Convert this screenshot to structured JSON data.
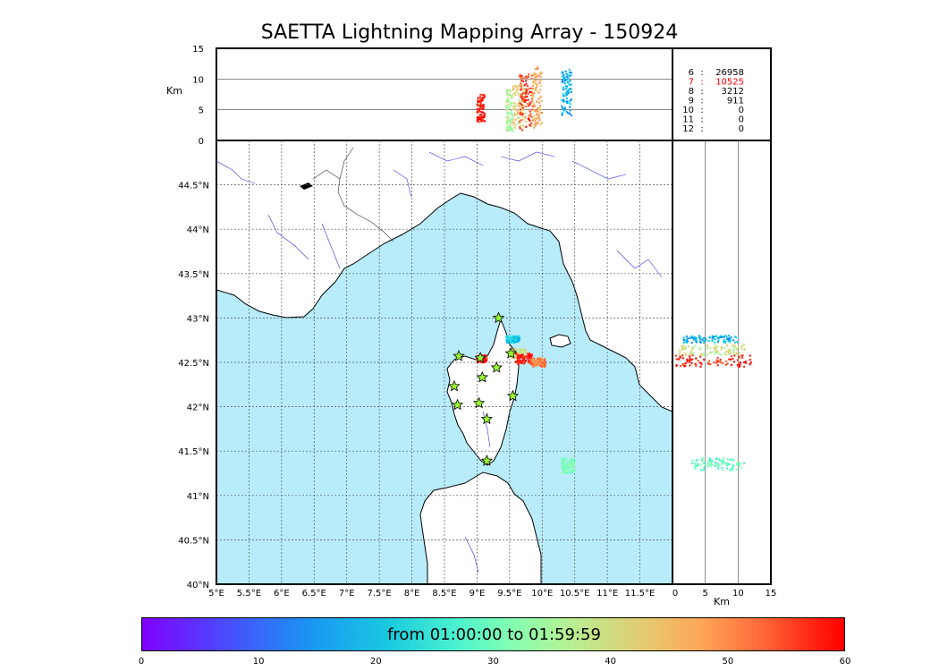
{
  "title": "SAETTA Lightning Mapping Array - 150924",
  "chart_data": [
    {
      "type": "scatter",
      "panel": "altitude-longitude",
      "ylabel": "Km",
      "yticks": [
        0,
        5,
        10,
        15
      ],
      "ylim": [
        0,
        15
      ],
      "xlim": [
        5,
        12
      ],
      "gridlines_y": [
        5,
        10
      ],
      "clusters": [
        {
          "lon": [
            9.0,
            9.12
          ],
          "alt": [
            3.0,
            7.5
          ],
          "t": 58
        },
        {
          "lon": [
            9.45,
            9.55
          ],
          "alt": [
            1.5,
            8.5
          ],
          "t": 35
        },
        {
          "lon": [
            9.55,
            9.75
          ],
          "alt": [
            2.0,
            9.0
          ],
          "t": 42
        },
        {
          "lon": [
            9.65,
            9.85
          ],
          "alt": [
            1.5,
            11.0
          ],
          "t": 55
        },
        {
          "lon": [
            9.85,
            10.0
          ],
          "alt": [
            2.0,
            12.0
          ],
          "t": 46
        },
        {
          "lon": [
            10.3,
            10.45
          ],
          "alt": [
            4.0,
            11.5
          ],
          "t": 15
        }
      ]
    },
    {
      "type": "table",
      "panel": "counts",
      "rows": [
        {
          "station": "6",
          "sep": ":",
          "count": "26958",
          "color": "#000000"
        },
        {
          "station": "7",
          "sep": ":",
          "count": "10525",
          "color": "#ff0000"
        },
        {
          "station": "8",
          "sep": ":",
          "count": "3212",
          "color": "#000000"
        },
        {
          "station": "9",
          "sep": ":",
          "count": "911",
          "color": "#000000"
        },
        {
          "station": "10",
          "sep": ":",
          "count": "0",
          "color": "#000000"
        },
        {
          "station": "11",
          "sep": ":",
          "count": "0",
          "color": "#000000"
        },
        {
          "station": "12",
          "sep": ":",
          "count": "0",
          "color": "#000000"
        }
      ]
    },
    {
      "type": "scatter",
      "panel": "map",
      "xlim": [
        5,
        12
      ],
      "ylim": [
        40,
        45
      ],
      "xticks": [
        5,
        5.5,
        6,
        6.5,
        7,
        7.5,
        8,
        8.5,
        9,
        9.5,
        10,
        10.5,
        11,
        11.5
      ],
      "xtick_labels": [
        "5°E",
        "5.5°E",
        "6°E",
        "6.5°E",
        "7°E",
        "7.5°E",
        "8°E",
        "8.5°E",
        "9°E",
        "9.5°E",
        "10°E",
        "10.5°E",
        "11°E",
        "11.5°E"
      ],
      "yticks": [
        40,
        40.5,
        41,
        41.5,
        42,
        42.5,
        43,
        43.5,
        44,
        44.5
      ],
      "ytick_labels": [
        "40°N",
        "40.5°N",
        "41°N",
        "41.5°N",
        "42°N",
        "42.5°N",
        "43°N",
        "43.5°N",
        "44°N",
        "44.5°N"
      ],
      "sea_color": "#b8ecfb",
      "stations": [
        {
          "lon": 9.33,
          "lat": 43.0
        },
        {
          "lon": 8.72,
          "lat": 42.57
        },
        {
          "lon": 9.05,
          "lat": 42.55
        },
        {
          "lon": 9.52,
          "lat": 42.6
        },
        {
          "lon": 9.3,
          "lat": 42.44
        },
        {
          "lon": 9.08,
          "lat": 42.33
        },
        {
          "lon": 8.65,
          "lat": 42.23
        },
        {
          "lon": 9.55,
          "lat": 42.12
        },
        {
          "lon": 8.7,
          "lat": 42.02
        },
        {
          "lon": 9.03,
          "lat": 42.04
        },
        {
          "lon": 9.15,
          "lat": 41.86
        },
        {
          "lon": 9.15,
          "lat": 41.39
        }
      ],
      "clusters": [
        {
          "lon": [
            9.45,
            9.65
          ],
          "lat": [
            42.72,
            42.8
          ],
          "t": 18
        },
        {
          "lon": [
            9.5,
            9.75
          ],
          "lat": [
            42.55,
            42.65
          ],
          "t": 40
        },
        {
          "lon": [
            9.6,
            9.85
          ],
          "lat": [
            42.48,
            42.6
          ],
          "t": 58
        },
        {
          "lon": [
            9.85,
            10.05
          ],
          "lat": [
            42.45,
            42.55
          ],
          "t": 50
        },
        {
          "lon": [
            9.0,
            9.15
          ],
          "lat": [
            42.5,
            42.58
          ],
          "t": 58
        },
        {
          "lon": [
            10.3,
            10.5
          ],
          "lat": [
            41.25,
            41.42
          ],
          "t": 30
        }
      ]
    },
    {
      "type": "scatter",
      "panel": "latitude-altitude",
      "xlabel": "Km",
      "xticks": [
        0,
        5,
        10,
        15
      ],
      "xlim": [
        0,
        15
      ],
      "ylim": [
        40,
        45
      ],
      "gridlines_x": [
        5,
        10
      ],
      "clusters": [
        {
          "alt": [
            1.5,
            10.0
          ],
          "lat": [
            42.72,
            42.8
          ],
          "t": 15
        },
        {
          "alt": [
            1.0,
            11.0
          ],
          "lat": [
            42.58,
            42.7
          ],
          "t": 38
        },
        {
          "alt": [
            0.5,
            12.0
          ],
          "lat": [
            42.45,
            42.58
          ],
          "t": 57
        },
        {
          "alt": [
            3.0,
            11.0
          ],
          "lat": [
            41.28,
            41.42
          ],
          "t": 28
        }
      ]
    }
  ],
  "colorbar": {
    "label": "from 01:00:00 to 01:59:59",
    "ticks": [
      "0",
      "10",
      "20",
      "30",
      "40",
      "50",
      "60"
    ]
  }
}
